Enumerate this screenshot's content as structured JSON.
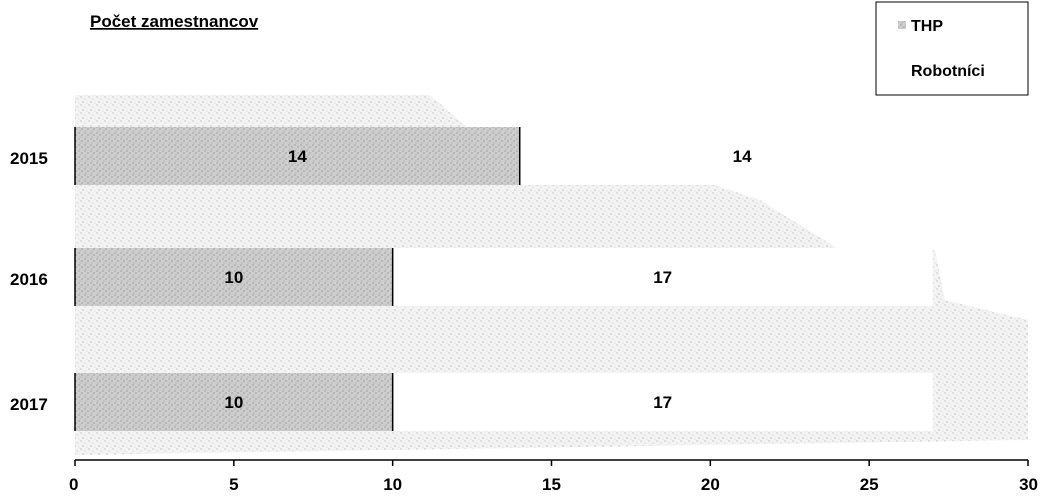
{
  "chart_data": {
    "type": "bar",
    "orientation": "horizontal",
    "stacked": true,
    "title": "Počet zamestnancov",
    "categories": [
      "2015",
      "2016",
      "2017"
    ],
    "series": [
      {
        "name": "THP",
        "values": [
          14,
          10,
          10
        ]
      },
      {
        "name": "Robotníci",
        "values": [
          14,
          17,
          17
        ]
      }
    ],
    "xlim": [
      0,
      30
    ],
    "x_ticks": [
      "0",
      "5",
      "10",
      "15",
      "20",
      "25",
      "30"
    ],
    "legend_position": "top-right",
    "grid": false,
    "colors": {
      "thp": "#c4c4c4",
      "robotnici": "#ffffff",
      "outline": "#000000",
      "background_texture": "#d9d9d9"
    }
  }
}
